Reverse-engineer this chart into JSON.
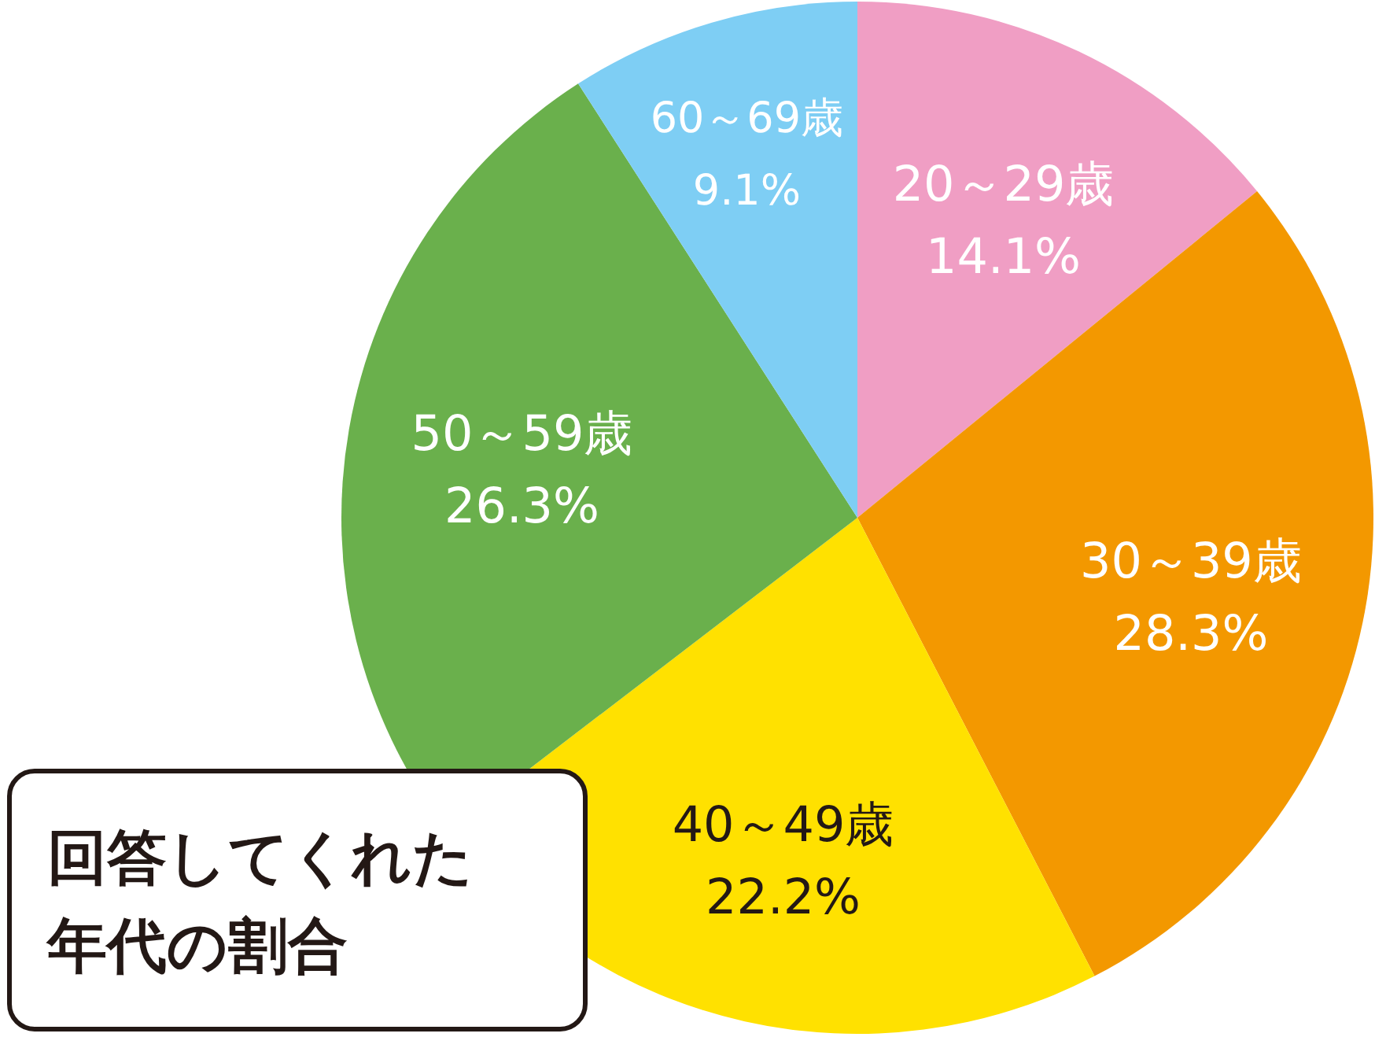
{
  "chart_data": {
    "type": "pie",
    "title": "回答してくれた年代の割合",
    "categories": [
      "20～29歳",
      "30～39歳",
      "40～49歳",
      "50～59歳",
      "60～69歳"
    ],
    "values": [
      14.1,
      28.3,
      22.2,
      26.3,
      9.1
    ],
    "value_labels": [
      "14.1%",
      "28.3%",
      "22.2%",
      "26.3%",
      "9.1%"
    ],
    "colors": [
      "#f09ec4",
      "#f39800",
      "#ffe100",
      "#6ab04c",
      "#7ecef4"
    ]
  }
}
